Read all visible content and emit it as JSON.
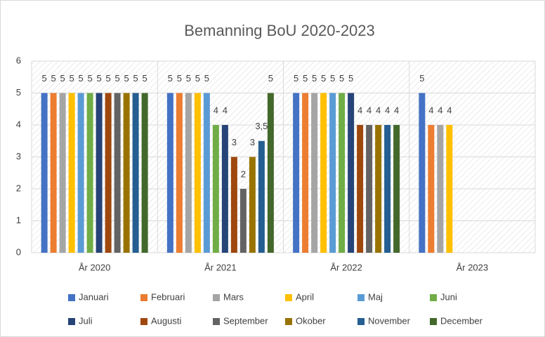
{
  "chart_data": {
    "type": "bar",
    "title": "Bemanning BoU 2020-2023",
    "categories": [
      "År 2020",
      "År 2021",
      "År 2022",
      "År 2023"
    ],
    "ylim": [
      0,
      6
    ],
    "yticks": [
      0,
      1,
      2,
      3,
      4,
      5,
      6
    ],
    "grid": true,
    "legend": "bottom",
    "series": [
      {
        "name": "Januari",
        "color": "#4472c4",
        "values": [
          5,
          5,
          5,
          5
        ]
      },
      {
        "name": "Februari",
        "color": "#ed7d31",
        "values": [
          5,
          5,
          5,
          4
        ]
      },
      {
        "name": "Mars",
        "color": "#a5a5a5",
        "values": [
          5,
          5,
          5,
          4
        ]
      },
      {
        "name": "April",
        "color": "#ffc000",
        "values": [
          5,
          5,
          5,
          4
        ]
      },
      {
        "name": "Maj",
        "color": "#5b9bd5",
        "values": [
          5,
          5,
          5,
          null
        ]
      },
      {
        "name": "Juni",
        "color": "#70ad47",
        "values": [
          5,
          4,
          5,
          null
        ]
      },
      {
        "name": "Juli",
        "color": "#264478",
        "values": [
          5,
          4,
          5,
          null
        ]
      },
      {
        "name": "Augusti",
        "color": "#9e480e",
        "values": [
          5,
          3,
          4,
          null
        ]
      },
      {
        "name": "September",
        "color": "#636363",
        "values": [
          5,
          2,
          4,
          null
        ]
      },
      {
        "name": "Okober",
        "color": "#997300",
        "values": [
          5,
          3,
          4,
          null
        ]
      },
      {
        "name": "November",
        "color": "#255e91",
        "values": [
          5,
          3.5,
          4,
          null
        ],
        "value_labels": [
          "5",
          "3,5",
          "4",
          null
        ]
      },
      {
        "name": "December",
        "color": "#43682b",
        "values": [
          5,
          5,
          4,
          null
        ]
      }
    ]
  }
}
